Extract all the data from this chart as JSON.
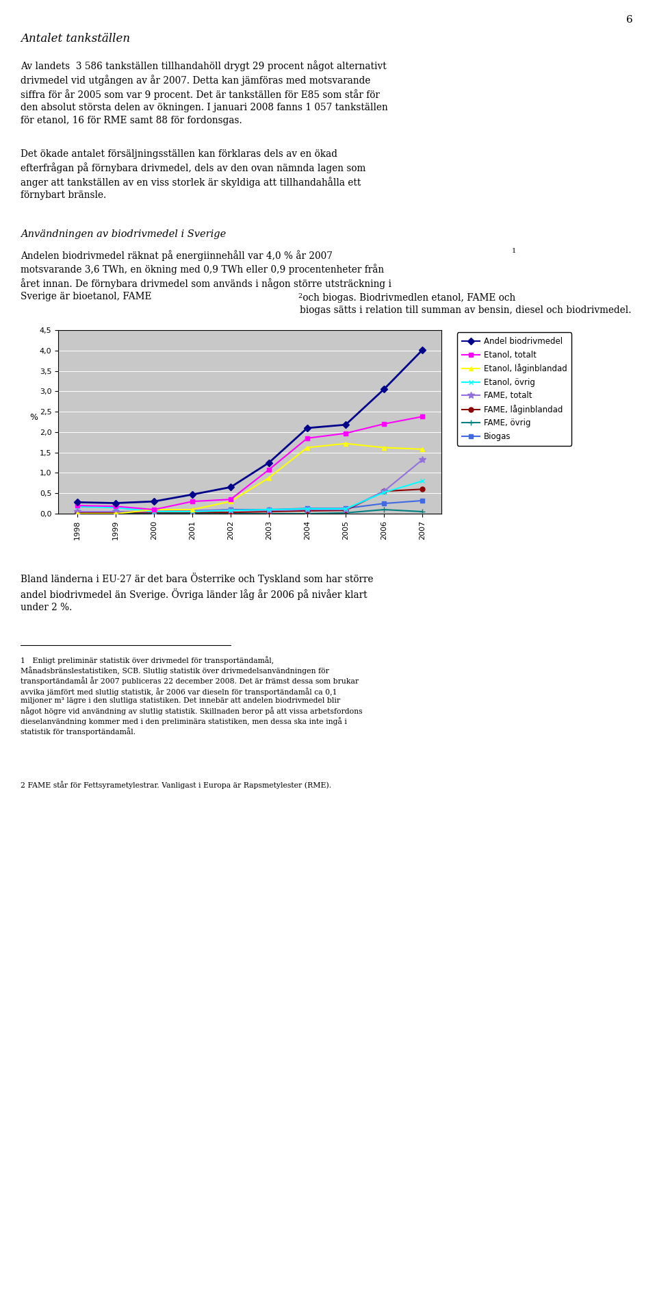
{
  "years": [
    1998,
    1999,
    2000,
    2001,
    2002,
    2003,
    2004,
    2005,
    2006,
    2007
  ],
  "series": {
    "Andel biodrivmedel": {
      "values": [
        0.28,
        0.26,
        0.3,
        0.47,
        0.65,
        1.25,
        2.1,
        2.18,
        3.05,
        4.01
      ],
      "color": "#00008B",
      "marker": "D",
      "markersize": 5,
      "linewidth": 2.0,
      "zorder": 10
    },
    "Etanol, totalt": {
      "values": [
        0.2,
        0.18,
        0.1,
        0.3,
        0.35,
        1.08,
        1.85,
        1.97,
        2.2,
        2.38
      ],
      "color": "#FF00FF",
      "marker": "s",
      "markersize": 5,
      "linewidth": 1.5,
      "zorder": 9
    },
    "Etanol, låginblandad": {
      "values": [
        0.0,
        0.0,
        0.1,
        0.1,
        0.3,
        0.88,
        1.62,
        1.72,
        1.62,
        1.58
      ],
      "color": "#FFFF00",
      "marker": "^",
      "markersize": 5,
      "linewidth": 1.5,
      "zorder": 8
    },
    "Etanol, övrig": {
      "values": [
        0.17,
        0.15,
        0.05,
        0.05,
        0.08,
        0.1,
        0.12,
        0.12,
        0.52,
        0.8
      ],
      "color": "#00FFFF",
      "marker": "x",
      "markersize": 5,
      "linewidth": 1.5,
      "zorder": 7
    },
    "FAME, totalt": {
      "values": [
        0.05,
        0.05,
        0.05,
        0.07,
        0.08,
        0.08,
        0.1,
        0.1,
        0.55,
        1.32
      ],
      "color": "#9370DB",
      "marker": "*",
      "markersize": 7,
      "linewidth": 1.5,
      "zorder": 6
    },
    "FAME, låginblandad": {
      "values": [
        0.03,
        0.03,
        0.03,
        0.03,
        0.03,
        0.05,
        0.07,
        0.08,
        0.55,
        0.6
      ],
      "color": "#8B0000",
      "marker": "o",
      "markersize": 5,
      "linewidth": 1.5,
      "zorder": 5
    },
    "FAME, övrig": {
      "values": [
        0.02,
        0.02,
        0.0,
        0.0,
        0.0,
        0.0,
        0.0,
        0.02,
        0.1,
        0.05
      ],
      "color": "#008080",
      "marker": "+",
      "markersize": 6,
      "linewidth": 1.5,
      "zorder": 4
    },
    "Biogas": {
      "values": [
        0.03,
        0.05,
        0.05,
        0.07,
        0.1,
        0.1,
        0.13,
        0.13,
        0.25,
        0.32
      ],
      "color": "#4169E1",
      "marker": "s",
      "markersize": 5,
      "linewidth": 1.5,
      "zorder": 3
    }
  },
  "ylabel": "%",
  "ylim": [
    0.0,
    4.5
  ],
  "yticks": [
    0.0,
    0.5,
    1.0,
    1.5,
    2.0,
    2.5,
    3.0,
    3.5,
    4.0,
    4.5
  ],
  "ytick_labels": [
    "0,0",
    "0,5",
    "1,0",
    "1,5",
    "2,0",
    "2,5",
    "3,0",
    "3,5",
    "4,0",
    "4,5"
  ],
  "plot_bg_color": "#C8C8C8",
  "page_bg_color": "#FFFFFF",
  "legend_fontsize": 8.5,
  "tick_fontsize": 8,
  "axis_label_fontsize": 9,
  "page_number": "6",
  "title": "Antalet tankställen",
  "para1": "Av landets  3 586 tankställen tillhandahöll drygt 29 procent något alternativt\ndrivmedel vid utgången av år 2007. Detta kan jämföras med motsvarande\nsiffra för år 2005 som var 9 procent. Det är tankställen för E85 som står för\nden absolut största delen av ökningen. I januari 2008 fanns 1 057 tankställen\nför etanol, 16 för RME samt 88 för fordonsgas.",
  "para2": "Det ökade antalet försäljningsställen kan förklaras dels av en ökad\nefterfrågan på förnybara drivmedel, dels av den ovan nämnda lagen som\nanger att tankställen av en viss storlek är skyldiga att tillhandahålla ett\nförnybart bränsle.",
  "heading2": "Användningen av biodrivmedel i Sverige",
  "para3a": "Andelen biodrivmedel räknat på energiinnehåll var 4,0 % år 2007",
  "para3b": "motsvarande 3,6 TWh, en ökning med 0,9 TWh eller 0,9 procentenheter från\nåret innan. De förnybara drivmedel som används i någon större utsträckning i\nSverige är bioetanol, FAME",
  "para3c": " och biogas. Biodrivmedlen etanol, FAME och\nbiogas sätts i relation till summan av bensin, diesel och biodrivmedel.",
  "para4": "Bland länderna i EU-27 är det bara Österrike och Tyskland som har större\nandel biodrivmedel än Sverige. Övriga länder låg år 2006 på nivåer klart\nunder 2 %.",
  "footnote1": "1   Enligt preliminär statistik över drivmedel för transportändamål,\nMånadsbränslestatistiken, SCB. Slutlig statistik över drivmedelsanvändningen för\ntransportändamål år 2007 publiceras 22 december 2008. Det är främst dessa som brukar\navvika jämfört med slutlig statistik, år 2006 var dieseln för transportändamål ca 0,1\nmiljoner m³ lägre i den slutliga statistiken. Det innebär att andelen biodrivmedel blir\nnågot högre vid användning av slutlig statistik. Skillnaden beror på att vissa arbetsfordons\ndieselanvändning kommer med i den preliminära statistiken, men dessa ska inte ingå i\nstatistik för transportändamål.",
  "footnote2": "2 FAME står för Fettsyrametylestrar. Vanligast i Europa är Rapsmetylester (RME)."
}
